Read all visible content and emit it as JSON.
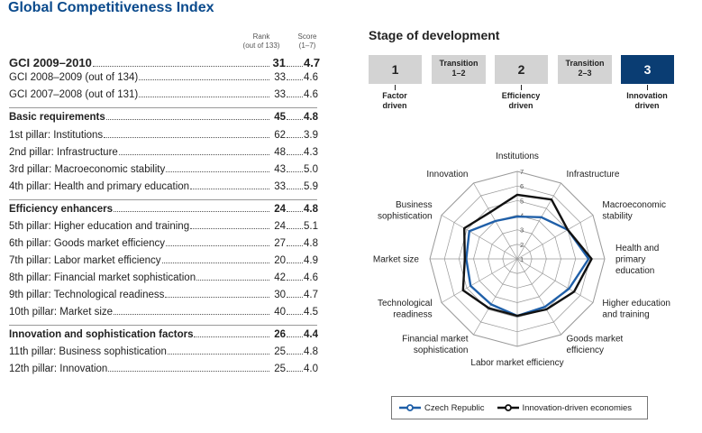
{
  "title": "Global Competitiveness Index",
  "table": {
    "rank_header": [
      "Rank",
      "(out of 133)"
    ],
    "score_header": [
      "Score",
      "(1–7)"
    ],
    "rows": [
      {
        "label": "GCI 2009–2010",
        "rank": "31",
        "score": "4.7",
        "style": "big"
      },
      {
        "label": "GCI 2008–2009 (out of 134)",
        "rank": "33",
        "score": "4.6",
        "style": "normal"
      },
      {
        "label": "GCI 2007–2008 (out of 131)",
        "rank": "33",
        "score": "4.6",
        "style": "normal"
      },
      {
        "label": "Basic requirements",
        "rank": "45",
        "score": "4.8",
        "style": "bold"
      },
      {
        "label": "1st pillar: Institutions",
        "rank": "62",
        "score": "3.9",
        "style": "normal"
      },
      {
        "label": "2nd pillar: Infrastructure",
        "rank": "48",
        "score": "4.3",
        "style": "normal"
      },
      {
        "label": "3rd pillar: Macroeconomic stability",
        "rank": "43",
        "score": "5.0",
        "style": "normal"
      },
      {
        "label": "4th pillar: Health and primary education",
        "rank": "33",
        "score": "5.9",
        "style": "normal"
      },
      {
        "label": "Efficiency enhancers",
        "rank": "24",
        "score": "4.8",
        "style": "bold"
      },
      {
        "label": "5th pillar: Higher education and training",
        "rank": "24",
        "score": "5.1",
        "style": "normal"
      },
      {
        "label": "6th pillar: Goods market efficiency",
        "rank": "27",
        "score": "4.8",
        "style": "normal"
      },
      {
        "label": "7th pillar: Labor market efficiency",
        "rank": "20",
        "score": "4.9",
        "style": "normal"
      },
      {
        "label": "8th pillar: Financial market sophistication",
        "rank": "42",
        "score": "4.6",
        "style": "normal"
      },
      {
        "label": "9th pillar: Technological readiness",
        "rank": "30",
        "score": "4.7",
        "style": "normal"
      },
      {
        "label": "10th pillar: Market size",
        "rank": "40",
        "score": "4.5",
        "style": "normal"
      },
      {
        "label": "Innovation and sophistication factors",
        "rank": "26",
        "score": "4.4",
        "style": "bold"
      },
      {
        "label": "11th pillar: Business sophistication",
        "rank": "25",
        "score": "4.8",
        "style": "normal"
      },
      {
        "label": "12th pillar: Innovation",
        "rank": "25",
        "score": "4.0",
        "style": "normal"
      }
    ]
  },
  "stage": {
    "title": "Stage of development",
    "boxes": [
      {
        "text": "1",
        "kind": "num",
        "active": false
      },
      {
        "text": "Transition",
        "text2": "1–2",
        "kind": "tr",
        "active": false
      },
      {
        "text": "2",
        "kind": "num",
        "active": false
      },
      {
        "text": "Transition",
        "text2": "2–3",
        "kind": "tr",
        "active": false
      },
      {
        "text": "3",
        "kind": "num",
        "active": true
      }
    ],
    "labels": [
      {
        "line1": "Factor",
        "line2": "driven"
      },
      {
        "line1": "Efficiency",
        "line2": "driven"
      },
      {
        "line1": "Innovation",
        "line2": "driven"
      }
    ],
    "active_color": "#0a3d73"
  },
  "chart_data": {
    "type": "radar",
    "axes": [
      "Institutions",
      "Infrastructure",
      "Macroeconomic stability",
      "Health and primary education",
      "Higher education and training",
      "Goods market efficiency",
      "Labor market efficiency",
      "Financial market sophistication",
      "Technological readiness",
      "Market size",
      "Business sophistication",
      "Innovation"
    ],
    "axis_label_lines": [
      [
        "Institutions"
      ],
      [
        "Infrastructure"
      ],
      [
        "Macroeconomic",
        "stability"
      ],
      [
        "Health and",
        "primary",
        "education"
      ],
      [
        "Higher education",
        "and training"
      ],
      [
        "Goods market",
        "efficiency"
      ],
      [
        "Labor market efficiency"
      ],
      [
        "Financial market",
        "sophistication"
      ],
      [
        "Technological",
        "readiness"
      ],
      [
        "Market size"
      ],
      [
        "Business",
        "sophistication"
      ],
      [
        "Innovation"
      ]
    ],
    "ticks": [
      "1",
      "2",
      "3",
      "4",
      "5",
      "6",
      "7"
    ],
    "range": [
      1,
      7
    ],
    "series": [
      {
        "name": "Czech Republic",
        "color": "#1f5fa8",
        "values": [
          3.9,
          4.3,
          5.0,
          5.9,
          5.1,
          4.8,
          4.9,
          4.6,
          4.7,
          4.5,
          4.8,
          4.0
        ]
      },
      {
        "name": "Innovation-driven economies",
        "color": "#111111",
        "values": [
          5.4,
          5.7,
          5.0,
          6.1,
          5.5,
          5.0,
          4.9,
          4.9,
          5.3,
          4.6,
          5.2,
          4.7
        ]
      }
    ],
    "legend_position": "bottom"
  }
}
